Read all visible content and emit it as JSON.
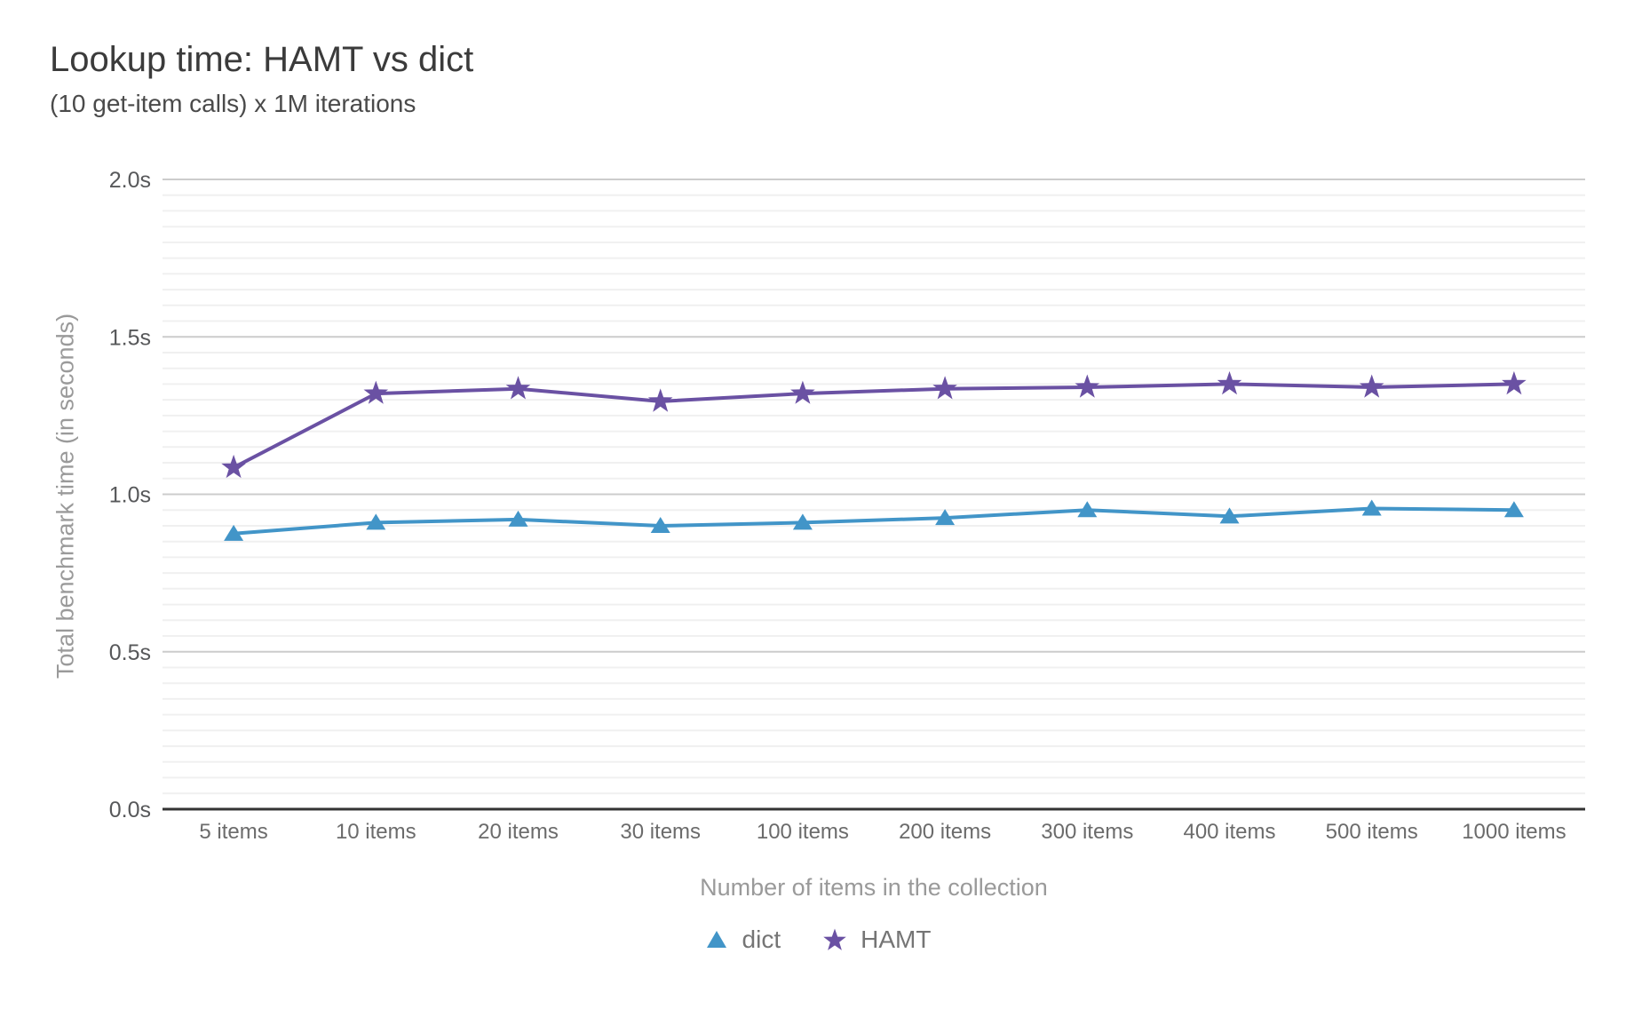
{
  "header": {
    "title": "Lookup time: HAMT vs dict",
    "subtitle": "(10 get-item calls) x 1M iterations"
  },
  "chart_data": {
    "type": "line",
    "title": "Lookup time: HAMT vs dict",
    "subtitle": "(10 get-item calls) x 1M iterations",
    "categories": [
      "5 items",
      "10 items",
      "20 items",
      "30 items",
      "100 items",
      "200 items",
      "300 items",
      "400 items",
      "500 items",
      "1000 items"
    ],
    "series": [
      {
        "name": "dict",
        "marker": "triangle",
        "color": "#4295c8",
        "values": [
          0.875,
          0.91,
          0.92,
          0.9,
          0.91,
          0.925,
          0.95,
          0.93,
          0.955,
          0.95
        ]
      },
      {
        "name": "HAMT",
        "marker": "star",
        "color": "#6a51a3",
        "values": [
          1.085,
          1.32,
          1.335,
          1.295,
          1.32,
          1.335,
          1.34,
          1.35,
          1.34,
          1.35
        ]
      }
    ],
    "xlabel": "Number of items in the collection",
    "ylabel": "Total benchmark time (in seconds)",
    "ylim": [
      0,
      2
    ],
    "y_major_step": 0.5,
    "y_minor_step": 0.05,
    "y_ticks": [
      {
        "value": 0.0,
        "label": "0.0s"
      },
      {
        "value": 0.5,
        "label": "0.5s"
      },
      {
        "value": 1.0,
        "label": "1.0s"
      },
      {
        "value": 1.5,
        "label": "1.5s"
      },
      {
        "value": 2.0,
        "label": "2.0s"
      }
    ],
    "grid": true,
    "legend_position": "bottom"
  }
}
